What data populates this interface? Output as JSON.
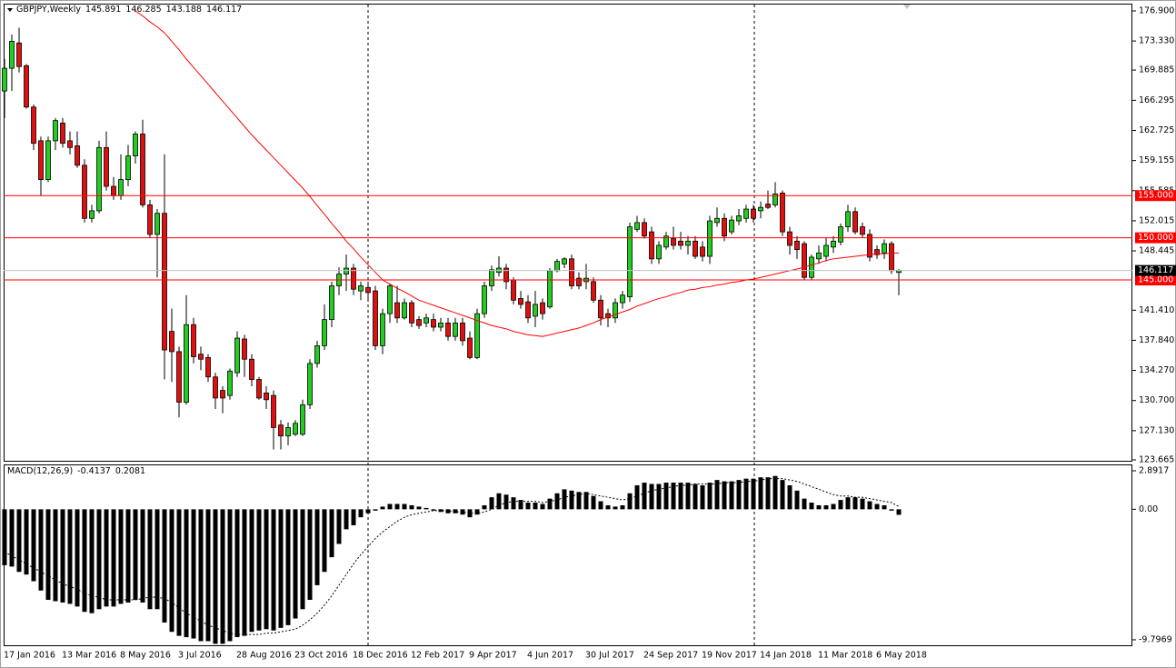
{
  "chart_data": [
    {
      "type": "candlestick",
      "title": "GBPJPY,Weekly",
      "categories": [
        "17 Jan 2016",
        null,
        null,
        null,
        null,
        null,
        null,
        null,
        "13 Mar 2016",
        null,
        null,
        null,
        null,
        null,
        null,
        null,
        "8 May 2016",
        null,
        null,
        null,
        null,
        null,
        null,
        null,
        "3 Jul 2016",
        null,
        null,
        null,
        null,
        null,
        null,
        null,
        "28 Aug 2016",
        null,
        null,
        null,
        null,
        null,
        null,
        null,
        "23 Oct 2016",
        null,
        null,
        null,
        null,
        null,
        null,
        null,
        "18 Dec 2016",
        null,
        null,
        null,
        null,
        null,
        null,
        null,
        "12 Feb 2017",
        null,
        null,
        null,
        null,
        null,
        null,
        null,
        "9 Apr 2017",
        null,
        null,
        null,
        null,
        null,
        null,
        null,
        "4 Jun 2017",
        null,
        null,
        null,
        null,
        null,
        null,
        null,
        "30 Jul 2017",
        null,
        null,
        null,
        null,
        null,
        null,
        null,
        "24 Sep 2017",
        null,
        null,
        null,
        null,
        null,
        null,
        null,
        "19 Nov 2017",
        null,
        null,
        null,
        null,
        null,
        null,
        null,
        "14 Jan 2018",
        null,
        null,
        null,
        null,
        null,
        null,
        null,
        "11 Mar 2018",
        null,
        null,
        null,
        null,
        null,
        null,
        null,
        "6 May 2018",
        null,
        null,
        null
      ],
      "open": [
        167.4,
        170.1,
        173.1,
        170.4,
        165.5,
        161.5,
        156.9,
        161.5,
        163.6,
        161.5,
        160.9,
        158.6,
        152.3,
        153.2,
        160.7,
        156.1,
        155.0,
        156.9,
        159.7,
        162.3,
        153.9,
        150.4,
        152.9,
        138.9,
        136.5,
        130.5,
        139.7,
        136.2,
        135.8,
        133.5,
        131.9,
        131.3,
        134.0,
        138.0,
        135.6,
        133.2,
        131.6,
        131.3,
        127.8,
        126.5,
        126.7,
        126.7,
        130.2,
        135.1,
        137.2,
        140.3,
        144.3,
        145.7,
        146.4,
        143.7,
        144.1,
        143.7,
        137.2,
        141.0,
        142.3,
        140.5,
        142.3,
        140.3,
        139.9,
        140.3,
        139.4,
        139.9,
        138.3,
        139.9,
        138.1,
        135.8,
        141.0,
        144.3,
        145.9,
        146.4,
        145.0,
        142.8,
        142.4,
        140.7,
        142.3,
        141.8,
        146.1,
        146.9,
        147.5,
        145.2,
        144.8,
        144.8,
        142.6,
        141.0,
        140.5,
        142.3,
        143.0,
        151.0,
        151.8,
        150.7,
        147.5,
        148.9,
        149.9,
        149.6,
        149.1,
        149.6,
        148.9,
        147.8,
        151.8,
        152.3,
        150.7,
        152.0,
        152.3,
        153.4,
        153.2,
        154.0,
        153.9,
        155.3,
        150.7,
        149.6,
        149.3,
        145.3,
        147.5,
        147.8,
        148.9,
        149.5,
        151.3,
        153.1,
        151.3,
        150.4,
        148.6,
        148.2,
        149.3,
        145.891
      ],
      "high": [
        171.2,
        174.1,
        174.9,
        170.6,
        165.8,
        162.0,
        162.0,
        164.2,
        164.2,
        162.6,
        162.6,
        159.3,
        153.9,
        161.5,
        162.6,
        157.2,
        159.9,
        161.0,
        162.6,
        164.0,
        154.5,
        153.4,
        159.9,
        141.6,
        137.1,
        143.2,
        140.5,
        137.1,
        136.2,
        134.0,
        132.4,
        134.5,
        138.9,
        138.5,
        136.2,
        133.5,
        132.4,
        131.9,
        128.4,
        128.1,
        128.4,
        130.8,
        135.6,
        137.8,
        142.1,
        144.8,
        146.5,
        148.0,
        146.9,
        144.8,
        144.8,
        144.3,
        141.6,
        144.6,
        144.3,
        142.8,
        142.6,
        140.7,
        141.0,
        141.0,
        140.5,
        140.5,
        140.5,
        140.5,
        138.9,
        141.6,
        144.8,
        146.7,
        147.8,
        146.9,
        145.3,
        143.7,
        143.2,
        143.7,
        142.8,
        146.4,
        147.5,
        147.7,
        148.0,
        145.9,
        146.9,
        145.3,
        143.2,
        141.6,
        142.8,
        143.7,
        151.8,
        152.6,
        152.3,
        151.3,
        149.6,
        150.7,
        151.3,
        150.7,
        150.2,
        150.2,
        149.6,
        152.6,
        153.6,
        152.9,
        152.6,
        153.4,
        153.9,
        153.9,
        154.3,
        155.6,
        156.6,
        155.6,
        151.3,
        150.2,
        149.6,
        148.0,
        149.1,
        150.0,
        150.2,
        151.7,
        153.9,
        153.6,
        151.8,
        151.0,
        149.1,
        149.8,
        149.6,
        146.285
      ],
      "low": [
        164.2,
        167.4,
        169.6,
        165.3,
        160.4,
        155.0,
        156.6,
        160.4,
        160.7,
        159.9,
        158.3,
        151.8,
        151.8,
        152.9,
        155.6,
        154.5,
        154.5,
        156.1,
        158.8,
        153.6,
        150.0,
        145.3,
        133.2,
        132.9,
        128.7,
        130.2,
        135.1,
        134.3,
        132.9,
        129.7,
        129.2,
        130.8,
        133.5,
        133.5,
        132.4,
        130.8,
        129.7,
        124.9,
        124.9,
        125.4,
        126.5,
        126.5,
        129.7,
        134.6,
        136.7,
        139.4,
        143.2,
        143.7,
        143.2,
        142.6,
        142.6,
        136.7,
        136.2,
        139.9,
        139.9,
        140.3,
        139.4,
        139.2,
        139.4,
        138.9,
        138.9,
        137.8,
        137.8,
        137.2,
        135.6,
        135.6,
        140.5,
        143.7,
        145.4,
        143.9,
        142.1,
        141.6,
        139.9,
        139.4,
        140.3,
        141.6,
        145.9,
        146.4,
        143.9,
        143.9,
        143.9,
        142.3,
        139.6,
        139.4,
        139.9,
        141.6,
        142.4,
        150.7,
        149.9,
        146.9,
        146.9,
        148.6,
        148.6,
        148.6,
        148.0,
        147.5,
        147.2,
        146.9,
        151.3,
        149.6,
        150.4,
        151.5,
        151.8,
        151.8,
        152.3,
        153.4,
        153.6,
        150.2,
        148.0,
        147.5,
        145.0,
        145.0,
        146.9,
        147.2,
        148.2,
        149.1,
        150.7,
        150.4,
        150.0,
        147.2,
        147.5,
        147.5,
        145.7,
        143.188
      ],
      "close": [
        170.1,
        173.3,
        170.3,
        165.5,
        161.2,
        156.9,
        161.5,
        163.9,
        161.2,
        160.7,
        158.6,
        152.3,
        153.2,
        160.7,
        156.1,
        155.0,
        156.9,
        159.7,
        162.3,
        153.9,
        150.4,
        152.9,
        136.7,
        136.5,
        130.5,
        139.7,
        135.9,
        135.6,
        133.5,
        131.0,
        131.0,
        134.2,
        138.1,
        135.6,
        133.2,
        131.0,
        130.8,
        127.5,
        126.5,
        127.5,
        128.0,
        130.2,
        135.1,
        137.2,
        140.3,
        144.3,
        145.7,
        146.4,
        143.9,
        144.3,
        143.5,
        137.2,
        141.0,
        144.3,
        140.5,
        142.3,
        139.9,
        139.6,
        140.5,
        139.4,
        139.9,
        138.3,
        139.9,
        137.8,
        135.8,
        141.0,
        144.3,
        146.2,
        146.4,
        144.8,
        142.6,
        142.1,
        140.5,
        142.1,
        141.0,
        146.1,
        147.2,
        147.5,
        144.3,
        144.3,
        145.2,
        142.6,
        140.5,
        140.5,
        142.3,
        143.2,
        151.3,
        151.8,
        150.2,
        147.5,
        149.1,
        150.2,
        149.1,
        149.1,
        149.6,
        147.8,
        147.8,
        152.0,
        152.3,
        150.2,
        152.1,
        152.6,
        153.4,
        152.3,
        153.6,
        153.6,
        155.2,
        150.7,
        149.1,
        148.6,
        145.3,
        147.7,
        148.2,
        149.1,
        149.6,
        151.3,
        153.1,
        150.7,
        150.4,
        147.7,
        148.0,
        149.3,
        146.1,
        146.117
      ],
      "up_color": "#22cc22",
      "down_color": "#e01010",
      "ma_values": [
        null,
        null,
        null,
        null,
        null,
        null,
        null,
        null,
        null,
        null,
        null,
        null,
        null,
        null,
        null,
        null,
        null,
        null,
        176.9,
        176.3,
        175.6,
        175.0,
        174.3,
        173.3,
        172.3,
        171.2,
        170.2,
        169.2,
        168.2,
        167.2,
        166.2,
        165.2,
        164.2,
        163.2,
        162.2,
        161.3,
        160.4,
        159.5,
        158.6,
        157.7,
        156.8,
        155.9,
        154.9,
        153.8,
        152.8,
        151.7,
        150.7,
        149.6,
        148.7,
        147.7,
        146.8,
        145.9,
        145.0,
        144.5,
        144.0,
        143.6,
        143.1,
        142.6,
        142.3,
        142.0,
        141.7,
        141.4,
        141.1,
        140.8,
        140.5,
        140.2,
        139.9,
        139.6,
        139.4,
        139.2,
        138.9,
        138.7,
        138.5,
        138.4,
        138.3,
        138.5,
        138.7,
        138.9,
        139.1,
        139.3,
        139.6,
        139.9,
        140.3,
        140.6,
        140.9,
        141.2,
        141.5,
        141.9,
        142.2,
        142.5,
        142.8,
        143.0,
        143.3,
        143.5,
        143.8,
        143.9,
        144.1,
        144.2,
        144.4,
        144.5,
        144.7,
        144.8,
        145.0,
        145.1,
        145.3,
        145.5,
        145.7,
        145.9,
        146.1,
        146.3,
        146.5,
        146.8,
        147.0,
        147.3,
        147.5,
        147.6,
        147.7,
        147.8,
        147.9,
        148.0,
        148.1,
        148.1,
        148.2,
        148.2
      ],
      "ma_color": "#ff0000",
      "levels": [
        {
          "value": 155,
          "label": "155.000"
        },
        {
          "value": 150,
          "label": "150.000"
        },
        {
          "value": 145,
          "label": "145.000"
        }
      ],
      "level_color": "#ff0000",
      "bid_color": "#c0c0c0",
      "ylim": [
        123.45,
        177.76
      ],
      "yticks": [
        {
          "value": 176.9,
          "label": "176.900"
        },
        {
          "value": 173.33,
          "label": "173.330"
        },
        {
          "value": 169.885,
          "label": "169.885"
        },
        {
          "value": 166.295,
          "label": "166.295"
        },
        {
          "value": 162.725,
          "label": "162.725"
        },
        {
          "value": 159.155,
          "label": "159.155"
        },
        {
          "value": 155.585,
          "label": "155.585"
        },
        {
          "value": 152.015,
          "label": "152.015"
        },
        {
          "value": 148.445,
          "label": "148.445"
        },
        {
          "value": 141.41,
          "label": "141.410"
        },
        {
          "value": 137.84,
          "label": "137.840"
        },
        {
          "value": 134.27,
          "label": "134.270"
        },
        {
          "value": 130.7,
          "label": "130.700"
        },
        {
          "value": 127.13,
          "label": "127.130"
        },
        {
          "value": 123.665,
          "label": "123.665"
        }
      ]
    },
    {
      "type": "macd",
      "title": "MACD(12,26,9)",
      "values": [
        -4.2,
        -4.3,
        -4.7,
        -4.9,
        -5.4,
        -6.1,
        -6.8,
        -6.9,
        -7.0,
        -7.1,
        -7.3,
        -7.7,
        -7.8,
        -7.5,
        -7.3,
        -7.3,
        -7.1,
        -7.0,
        -6.8,
        -7.0,
        -7.5,
        -7.5,
        -8.5,
        -9.2,
        -9.5,
        -9.6,
        -9.7,
        -9.9,
        -9.9,
        -10.1,
        -10.1,
        -9.9,
        -9.6,
        -9.5,
        -9.2,
        -9.1,
        -9.0,
        -9.1,
        -8.9,
        -8.7,
        -8.2,
        -7.5,
        -6.8,
        -5.7,
        -4.7,
        -3.6,
        -2.6,
        -1.5,
        -1.2,
        -0.6,
        -0.3,
        -0.1,
        0.2,
        0.4,
        0.4,
        0.4,
        0.3,
        0.2,
        0.1,
        -0.1,
        -0.2,
        -0.3,
        -0.3,
        -0.4,
        -0.6,
        -0.4,
        0.3,
        0.9,
        1.2,
        1.1,
        0.9,
        0.7,
        0.5,
        0.5,
        0.4,
        0.8,
        1.2,
        1.5,
        1.4,
        1.3,
        1.3,
        1.0,
        0.6,
        0.3,
        0.2,
        0.3,
        1.2,
        1.8,
        2.0,
        1.9,
        1.9,
        2.0,
        2.0,
        2.0,
        2.0,
        1.9,
        1.8,
        2.0,
        2.2,
        2.1,
        2.1,
        2.2,
        2.3,
        2.3,
        2.4,
        2.4,
        2.5,
        2.2,
        1.8,
        1.4,
        0.8,
        0.5,
        0.3,
        0.3,
        0.4,
        0.7,
        0.9,
        0.9,
        0.8,
        0.6,
        0.4,
        0.3,
        -0.1,
        -0.4137
      ],
      "signal": [
        -3.2,
        -3.5,
        -3.8,
        -4.1,
        -4.4,
        -4.7,
        -5.0,
        -5.3,
        -5.6,
        -5.8,
        -6.0,
        -6.3,
        -6.5,
        -6.6,
        -6.8,
        -6.8,
        -6.8,
        -6.8,
        -6.8,
        -6.7,
        -6.6,
        -6.6,
        -6.7,
        -7.0,
        -7.4,
        -7.8,
        -8.1,
        -8.4,
        -8.7,
        -8.9,
        -9.1,
        -9.3,
        -9.4,
        -9.4,
        -9.4,
        -9.4,
        -9.3,
        -9.3,
        -9.2,
        -9.1,
        -9.0,
        -8.7,
        -8.3,
        -7.8,
        -7.2,
        -6.5,
        -5.7,
        -4.9,
        -4.1,
        -3.4,
        -2.8,
        -2.2,
        -1.7,
        -1.3,
        -0.9,
        -0.6,
        -0.4,
        -0.3,
        -0.2,
        -0.1,
        -0.1,
        -0.1,
        -0.2,
        -0.2,
        -0.3,
        -0.3,
        -0.2,
        0.0,
        0.3,
        0.5,
        0.6,
        0.6,
        0.6,
        0.6,
        0.5,
        0.6,
        0.7,
        0.9,
        1.0,
        1.1,
        1.2,
        1.1,
        1.0,
        0.9,
        0.8,
        0.7,
        0.8,
        1.0,
        1.2,
        1.4,
        1.5,
        1.6,
        1.7,
        1.8,
        1.8,
        1.9,
        1.9,
        1.9,
        1.9,
        2.0,
        2.0,
        2.0,
        2.1,
        2.1,
        2.2,
        2.3,
        2.3,
        2.3,
        2.2,
        2.1,
        1.9,
        1.7,
        1.5,
        1.3,
        1.1,
        1.0,
        1.0,
        0.9,
        0.9,
        0.8,
        0.7,
        0.6,
        0.5,
        0.2081
      ],
      "color": "#000000",
      "ylim": [
        -10.21,
        3.3
      ],
      "yticks": [
        2.8917,
        {
          "value": 0,
          "label": "0.00"
        },
        -9.7969
      ]
    }
  ]
}
